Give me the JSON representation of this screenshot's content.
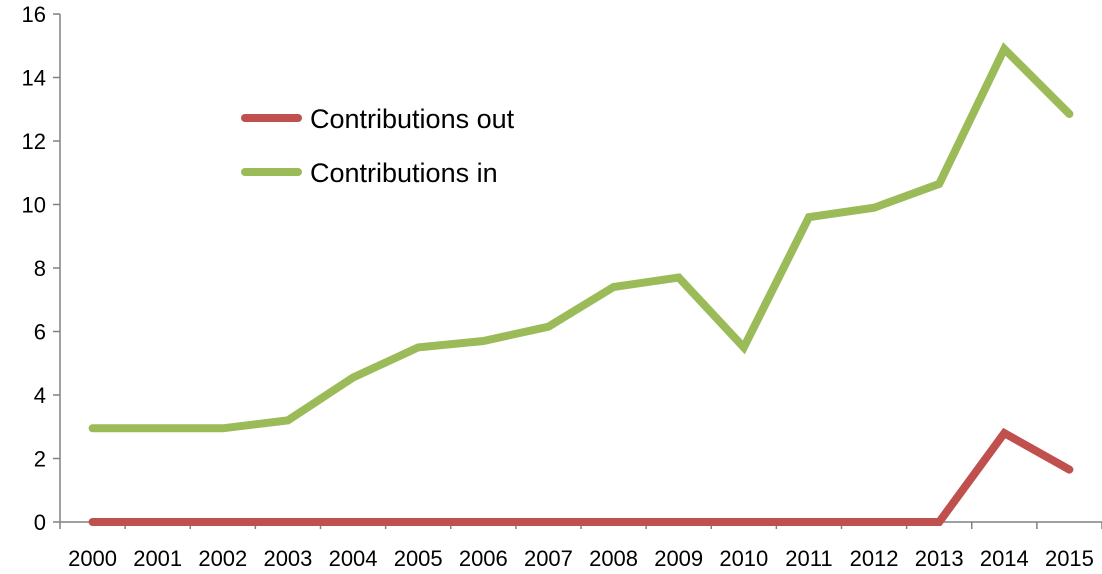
{
  "chart_data": {
    "type": "line",
    "x": [
      "2000",
      "2001",
      "2002",
      "2003",
      "2004",
      "2005",
      "2006",
      "2007",
      "2008",
      "2009",
      "2010",
      "2011",
      "2012",
      "2013",
      "2014",
      "2015"
    ],
    "series": [
      {
        "name": "Contributions out",
        "color": "#c0504d",
        "values": [
          0,
          0,
          0,
          0,
          0,
          0,
          0,
          0,
          0,
          0,
          0,
          0,
          0,
          0,
          2.8,
          1.65
        ]
      },
      {
        "name": "Contributions in",
        "color": "#9bbb59",
        "values": [
          2.95,
          2.95,
          2.95,
          3.2,
          4.55,
          5.5,
          5.7,
          6.15,
          7.4,
          7.7,
          5.5,
          9.6,
          9.9,
          10.65,
          14.9,
          12.85
        ]
      }
    ],
    "yticks": [
      "0",
      "2",
      "4",
      "6",
      "8",
      "10",
      "12",
      "14",
      "16"
    ],
    "ylim": [
      0,
      16
    ],
    "grid": false,
    "legend_position": "upper-left inside plot"
  }
}
